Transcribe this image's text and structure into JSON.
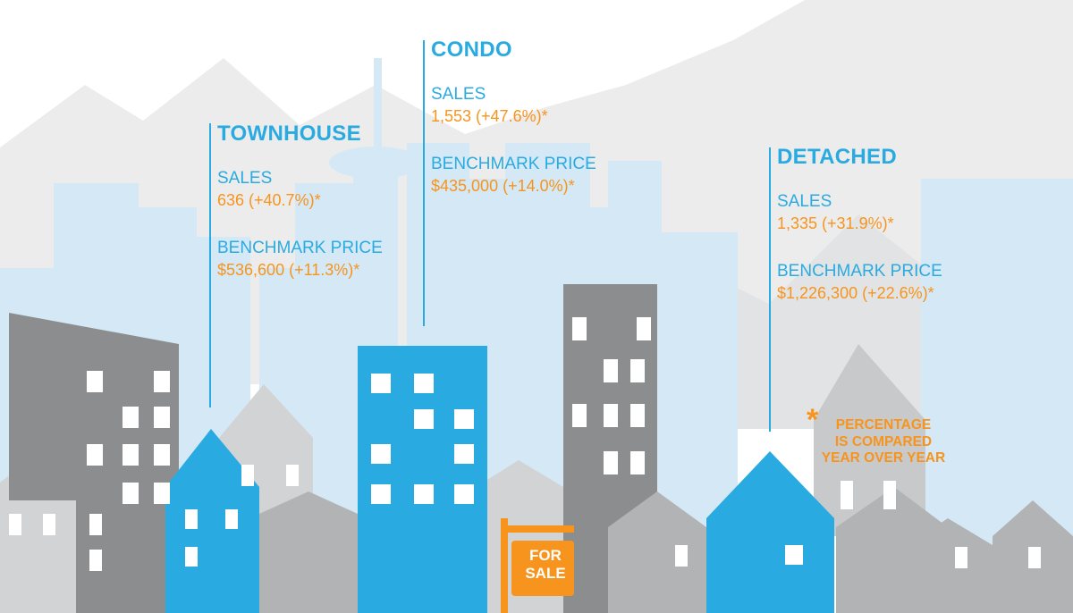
{
  "townhouse": {
    "title": "TOWNHOUSE",
    "sales_label": "SALES",
    "sales_value": "636 (+40.7%)*",
    "price_label": "BENCHMARK PRICE",
    "price_value": "$536,600 (+11.3%)*"
  },
  "condo": {
    "title": "CONDO",
    "sales_label": "SALES",
    "sales_value": "1,553 (+47.6%)*",
    "price_label": "BENCHMARK PRICE",
    "price_value": "$435,000 (+14.0%)*"
  },
  "detached": {
    "title": "DETACHED",
    "sales_label": "SALES",
    "sales_value": "1,335 (+31.9%)*",
    "price_label": "BENCHMARK PRICE",
    "price_value": "$1,226,300 (+22.6%)*"
  },
  "footnote": {
    "marker": "*",
    "lines": [
      "PERCENTAGE",
      "IS COMPARED",
      "YEAR OVER YEAR"
    ]
  },
  "sign": {
    "lines": [
      "FOR",
      "SALE"
    ]
  }
}
